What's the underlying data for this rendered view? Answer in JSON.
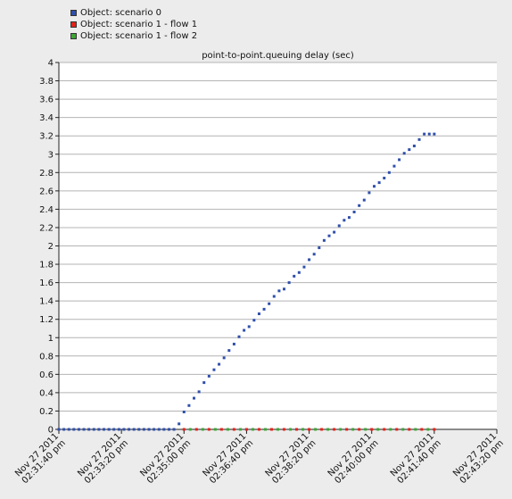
{
  "legend": [
    {
      "label": "Object: scenario 0",
      "color": "#2f4faa"
    },
    {
      "label": "Object: scenario 1 - flow 1",
      "color": "#e2231a"
    },
    {
      "label": "Object: scenario 1 - flow 2",
      "color": "#3fa535"
    }
  ],
  "chart_data": {
    "type": "scatter",
    "title": "point-to-point.queuing delay (sec)",
    "xlabel": "",
    "ylabel": "",
    "ylim": [
      0,
      4
    ],
    "y_ticks": [
      "0",
      "0.2",
      "0.4",
      "0.6",
      "0.8",
      "1",
      "1.2",
      "1.4",
      "1.6",
      "1.8",
      "2",
      "2.2",
      "2.4",
      "2.6",
      "2.8",
      "3",
      "3.2",
      "3.4",
      "3.6",
      "3.8",
      "4"
    ],
    "x_ticks": [
      [
        "Nov 27 2011",
        "02:31:40 pm"
      ],
      [
        "Nov 27 2011",
        "02:33:20 pm"
      ],
      [
        "Nov 27 2011",
        "02:35:00 pm"
      ],
      [
        "Nov 27 2011",
        "02:36:40 pm"
      ],
      [
        "Nov 27 2011",
        "02:38:20 pm"
      ],
      [
        "Nov 27 2011",
        "02:40:00 pm"
      ],
      [
        "Nov 27 2011",
        "02:41:40 pm"
      ],
      [
        "Nov 27 2011",
        "02:43:20 pm"
      ]
    ],
    "xlim": [
      "02:31:40 pm",
      "02:43:20 pm"
    ],
    "grid": true,
    "legend_position": "top-left",
    "series": [
      {
        "name": "Object: scenario 0",
        "color": "#2f4faa",
        "x": [
          "02:31:40 pm",
          "02:31:48 pm",
          "02:31:56 pm",
          "02:32:04 pm",
          "02:32:12 pm",
          "02:32:20 pm",
          "02:32:28 pm",
          "02:32:36 pm",
          "02:32:44 pm",
          "02:32:52 pm",
          "02:33:00 pm",
          "02:33:08 pm",
          "02:33:16 pm",
          "02:33:24 pm",
          "02:33:32 pm",
          "02:33:40 pm",
          "02:33:48 pm",
          "02:33:56 pm",
          "02:34:04 pm",
          "02:34:12 pm",
          "02:34:20 pm",
          "02:34:28 pm",
          "02:34:36 pm",
          "02:34:44 pm",
          "02:34:52 pm",
          "02:35:00 pm",
          "02:35:08 pm",
          "02:35:16 pm",
          "02:35:24 pm",
          "02:35:32 pm",
          "02:35:40 pm",
          "02:35:48 pm",
          "02:35:56 pm",
          "02:36:04 pm",
          "02:36:12 pm",
          "02:36:20 pm",
          "02:36:28 pm",
          "02:36:36 pm",
          "02:36:44 pm",
          "02:36:52 pm",
          "02:37:00 pm",
          "02:37:08 pm",
          "02:37:16 pm",
          "02:37:24 pm",
          "02:37:32 pm",
          "02:37:40 pm",
          "02:37:48 pm",
          "02:37:56 pm",
          "02:38:04 pm",
          "02:38:12 pm",
          "02:38:20 pm",
          "02:38:28 pm",
          "02:38:36 pm",
          "02:38:44 pm",
          "02:38:52 pm",
          "02:39:00 pm",
          "02:39:08 pm",
          "02:39:16 pm",
          "02:39:24 pm",
          "02:39:32 pm",
          "02:39:40 pm",
          "02:39:48 pm",
          "02:39:56 pm",
          "02:40:04 pm",
          "02:40:12 pm",
          "02:40:20 pm",
          "02:40:28 pm",
          "02:40:36 pm",
          "02:40:44 pm",
          "02:40:52 pm",
          "02:41:00 pm",
          "02:41:08 pm",
          "02:41:16 pm",
          "02:41:24 pm",
          "02:41:32 pm",
          "02:41:40 pm"
        ],
        "y": [
          0,
          0,
          0,
          0,
          0,
          0,
          0,
          0,
          0,
          0,
          0,
          0,
          0,
          0,
          0,
          0,
          0,
          0,
          0,
          0,
          0,
          0,
          0,
          0,
          0.06,
          0.19,
          0.26,
          0.34,
          0.41,
          0.51,
          0.58,
          0.65,
          0.71,
          0.78,
          0.86,
          0.93,
          1.01,
          1.08,
          1.12,
          1.19,
          1.26,
          1.31,
          1.37,
          1.45,
          1.51,
          1.53,
          1.6,
          1.67,
          1.71,
          1.77,
          1.85,
          1.91,
          1.98,
          2.06,
          2.11,
          2.15,
          2.22,
          2.28,
          2.31,
          2.37,
          2.44,
          2.5,
          2.58,
          2.65,
          2.69,
          2.74,
          2.8,
          2.87,
          2.94,
          3.01,
          3.05,
          3.09,
          3.16,
          3.22,
          3.22,
          3.22
        ]
      },
      {
        "name": "Object: scenario 1 - flow 1",
        "color": "#e2231a",
        "x": [
          "02:35:00 pm",
          "02:35:20 pm",
          "02:35:40 pm",
          "02:36:00 pm",
          "02:36:20 pm",
          "02:36:40 pm",
          "02:37:00 pm",
          "02:37:20 pm",
          "02:37:40 pm",
          "02:38:00 pm",
          "02:38:20 pm",
          "02:38:40 pm",
          "02:39:00 pm",
          "02:39:20 pm",
          "02:39:40 pm",
          "02:40:00 pm",
          "02:40:20 pm",
          "02:40:40 pm",
          "02:41:00 pm",
          "02:41:20 pm",
          "02:41:40 pm"
        ],
        "y": [
          0,
          0,
          0,
          0,
          0,
          0,
          0,
          0,
          0,
          0,
          0,
          0,
          0,
          0,
          0,
          0,
          0,
          0,
          0,
          0,
          0
        ]
      },
      {
        "name": "Object: scenario 1 - flow 2",
        "color": "#3fa535",
        "x": [
          "02:35:10 pm",
          "02:35:30 pm",
          "02:35:50 pm",
          "02:36:10 pm",
          "02:36:30 pm",
          "02:36:50 pm",
          "02:37:10 pm",
          "02:37:30 pm",
          "02:37:50 pm",
          "02:38:10 pm",
          "02:38:30 pm",
          "02:38:50 pm",
          "02:39:10 pm",
          "02:39:30 pm",
          "02:39:50 pm",
          "02:40:10 pm",
          "02:40:30 pm",
          "02:40:50 pm",
          "02:41:10 pm",
          "02:41:30 pm"
        ],
        "y": [
          0,
          0,
          0,
          0,
          0,
          0,
          0,
          0,
          0,
          0,
          0,
          0,
          0,
          0,
          0,
          0,
          0,
          0,
          0,
          0
        ]
      }
    ]
  }
}
